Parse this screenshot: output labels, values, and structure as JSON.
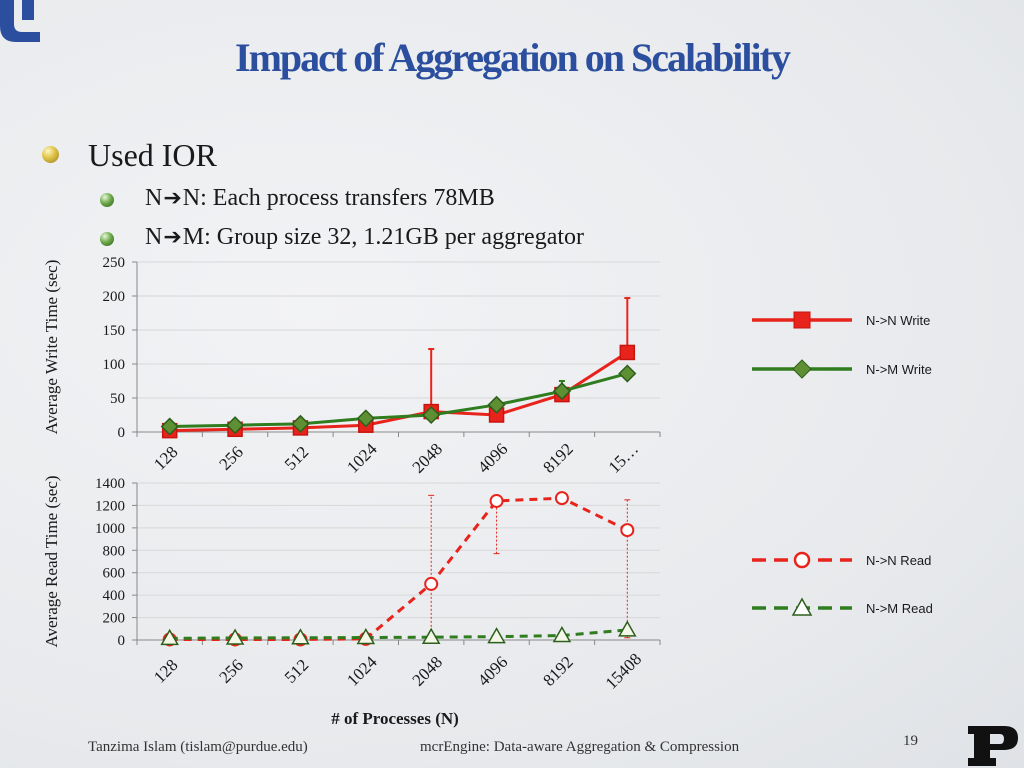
{
  "slide": {
    "title": "Impact of Aggregation on Scalability",
    "bullet_main": "Used IOR",
    "sub_bullets": [
      {
        "left": "N",
        "right": "N: Each process transfers 78MB"
      },
      {
        "left": "N",
        "right": "M: Group size 32, 1.21GB per aggregator"
      }
    ],
    "arrow_glyph": "➔",
    "xlabel": "# of Processes (N)",
    "footer_author": "Tanzima Islam (tislam@purdue.edu)",
    "footer_title": "mcrEngine: Data-aware Aggregation & Compression",
    "page_number": "19",
    "colors": {
      "title": "#2b4f9e",
      "nn": "#e8231c",
      "nm": "#2f7d1f",
      "error_bar": "#e8231c"
    }
  },
  "chart_data": [
    {
      "type": "line",
      "ylabel": "Average Write Time (sec)",
      "xlabel": "",
      "categories": [
        "128",
        "256",
        "512",
        "1024",
        "2048",
        "4096",
        "8192",
        "15…"
      ],
      "ylim": [
        0,
        250
      ],
      "yticks": [
        0,
        50,
        100,
        150,
        200,
        250
      ],
      "grid": true,
      "legend": "right",
      "series": [
        {
          "name": "N->N Write",
          "marker": "square",
          "values": [
            2,
            4,
            6,
            10,
            30,
            25,
            55,
            117
          ],
          "error_high": [
            null,
            null,
            null,
            null,
            122,
            null,
            null,
            197
          ]
        },
        {
          "name": "N->M Write",
          "marker": "diamond",
          "values": [
            8,
            10,
            12,
            20,
            25,
            40,
            60,
            86
          ],
          "error_high": [
            null,
            null,
            null,
            null,
            null,
            null,
            75,
            null
          ]
        }
      ]
    },
    {
      "type": "line",
      "ylabel": "Average Read Time (sec)",
      "xlabel": "# of Processes (N)",
      "categories": [
        "128",
        "256",
        "512",
        "1024",
        "2048",
        "4096",
        "8192",
        "15408"
      ],
      "ylim": [
        0,
        1400
      ],
      "yticks": [
        0,
        200,
        400,
        600,
        800,
        1000,
        1200,
        1400
      ],
      "grid": true,
      "legend": "right",
      "series": [
        {
          "name": "N->N Read",
          "marker": "circle",
          "values": [
            5,
            5,
            5,
            10,
            500,
            1240,
            1265,
            980
          ],
          "error_low": [
            null,
            null,
            null,
            null,
            10,
            770,
            null,
            20
          ],
          "error_high": [
            null,
            null,
            null,
            null,
            1290,
            null,
            null,
            1250
          ]
        },
        {
          "name": "N->M Read",
          "marker": "triangle",
          "values": [
            15,
            18,
            20,
            22,
            25,
            30,
            40,
            90
          ]
        }
      ]
    }
  ]
}
